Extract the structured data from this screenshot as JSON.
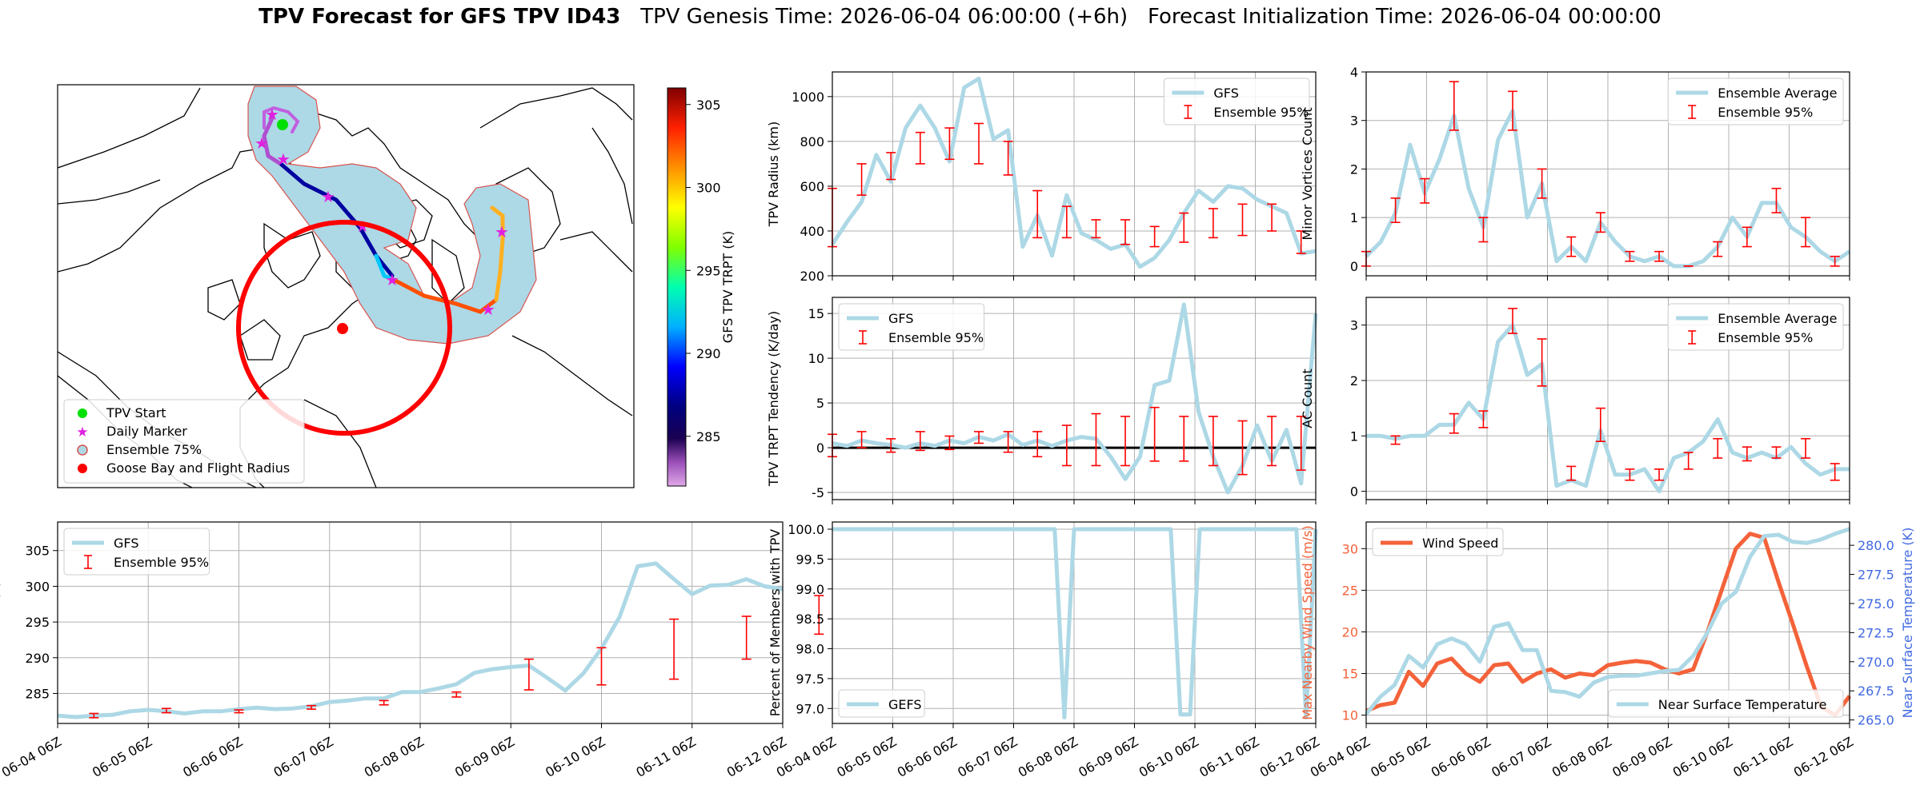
{
  "header": {
    "title_bold": "TPV Forecast for GFS TPV ID43",
    "title_genesis": "TPV Genesis Time: 2026-06-04 06:00:00 (+6h)",
    "title_init": "Forecast Initialization Time: 2026-06-04 00:00:00"
  },
  "colors": {
    "model_line": "#add8e6",
    "errorbar": "#ff0000",
    "wind_line": "#f4623a",
    "temp_axis": "#4169e1",
    "circle": "#ff0000",
    "tpv_start": "#00e000",
    "daily_marker": "#e020e0",
    "ensemble_fill": "#add8e6",
    "ensemble_edge": "#d9534f"
  },
  "x_ticks": [
    "06-04 06Z",
    "06-05 06Z",
    "06-06 06Z",
    "06-07 06Z",
    "06-08 06Z",
    "06-09 06Z",
    "06-10 06Z",
    "06-11 06Z",
    "06-12 06Z"
  ],
  "map": {
    "legend": [
      "TPV Start",
      "Daily Marker",
      "Ensemble 75%",
      "Goose Bay and Flight Radius"
    ],
    "colorbar_label": "GFS TPV TRPT (K)",
    "colorbar_ticks": [
      "285",
      "290",
      "295",
      "300",
      "305"
    ],
    "colorbar_range": [
      282,
      306
    ]
  },
  "chart_data": [
    {
      "type": "line",
      "panel": "radius",
      "ylabel": "TPV Radius (km)",
      "ylim": [
        200,
        1110
      ],
      "yticks": [
        200,
        400,
        600,
        800,
        1000
      ],
      "legend": [
        "GFS",
        "Ensemble 95%"
      ],
      "legend_position": "top-right",
      "grid": true,
      "series": [
        {
          "name": "GFS",
          "values": [
            340,
            440,
            530,
            740,
            620,
            860,
            960,
            860,
            710,
            1040,
            1080,
            810,
            850,
            330,
            470,
            290,
            560,
            390,
            360,
            320,
            340,
            240,
            280,
            360,
            480,
            580,
            530,
            600,
            590,
            540,
            510,
            480,
            300,
            310
          ]
        }
      ],
      "errorbars": [
        {
          "i": 0,
          "lo": 330,
          "hi": 590
        },
        {
          "i": 2,
          "lo": 560,
          "hi": 700
        },
        {
          "i": 4,
          "lo": 630,
          "hi": 750
        },
        {
          "i": 6,
          "lo": 700,
          "hi": 840
        },
        {
          "i": 8,
          "lo": 720,
          "hi": 860
        },
        {
          "i": 10,
          "lo": 700,
          "hi": 880
        },
        {
          "i": 12,
          "lo": 650,
          "hi": 800
        },
        {
          "i": 14,
          "lo": 370,
          "hi": 580
        },
        {
          "i": 16,
          "lo": 370,
          "hi": 510
        },
        {
          "i": 18,
          "lo": 370,
          "hi": 450
        },
        {
          "i": 20,
          "lo": 340,
          "hi": 450
        },
        {
          "i": 22,
          "lo": 330,
          "hi": 420
        },
        {
          "i": 24,
          "lo": 350,
          "hi": 480
        },
        {
          "i": 26,
          "lo": 370,
          "hi": 500
        },
        {
          "i": 28,
          "lo": 380,
          "hi": 520
        },
        {
          "i": 30,
          "lo": 400,
          "hi": 520
        },
        {
          "i": 32,
          "lo": 300,
          "hi": 400
        }
      ]
    },
    {
      "type": "line",
      "panel": "minor_vortices",
      "ylabel": "Minor Vortices Count",
      "ylim": [
        -0.2,
        4
      ],
      "yticks": [
        0,
        1,
        2,
        3,
        4
      ],
      "legend": [
        "Ensemble Average",
        "Ensemble 95%"
      ],
      "legend_position": "top-right",
      "grid": true,
      "series": [
        {
          "name": "Ensemble Average",
          "values": [
            0.2,
            0.5,
            1.1,
            2.5,
            1.5,
            2.2,
            3.1,
            1.6,
            0.8,
            2.6,
            3.2,
            1.0,
            1.7,
            0.1,
            0.4,
            0.1,
            0.9,
            0.5,
            0.2,
            0.1,
            0.2,
            0.0,
            0.0,
            0.1,
            0.4,
            1.0,
            0.6,
            1.3,
            1.3,
            0.8,
            0.6,
            0.3,
            0.1,
            0.3
          ]
        }
      ],
      "errorbars": [
        {
          "i": 0,
          "lo": 0.0,
          "hi": 0.3
        },
        {
          "i": 2,
          "lo": 0.9,
          "hi": 1.4
        },
        {
          "i": 4,
          "lo": 1.3,
          "hi": 1.8
        },
        {
          "i": 6,
          "lo": 2.8,
          "hi": 3.8
        },
        {
          "i": 8,
          "lo": 0.5,
          "hi": 1.0
        },
        {
          "i": 10,
          "lo": 2.8,
          "hi": 3.6
        },
        {
          "i": 12,
          "lo": 1.4,
          "hi": 2.0
        },
        {
          "i": 14,
          "lo": 0.2,
          "hi": 0.6
        },
        {
          "i": 16,
          "lo": 0.7,
          "hi": 1.1
        },
        {
          "i": 18,
          "lo": 0.1,
          "hi": 0.3
        },
        {
          "i": 20,
          "lo": 0.1,
          "hi": 0.3
        },
        {
          "i": 22,
          "lo": 0.0,
          "hi": 0.0
        },
        {
          "i": 24,
          "lo": 0.2,
          "hi": 0.5
        },
        {
          "i": 26,
          "lo": 0.4,
          "hi": 0.8
        },
        {
          "i": 28,
          "lo": 1.1,
          "hi": 1.6
        },
        {
          "i": 30,
          "lo": 0.4,
          "hi": 1.0
        },
        {
          "i": 32,
          "lo": 0.0,
          "hi": 0.2
        }
      ]
    },
    {
      "type": "line",
      "panel": "trpt_tendency",
      "ylabel": "TPV TRPT Tendency (K/day)",
      "ylim": [
        -5.8,
        16.8
      ],
      "yticks": [
        -5,
        0,
        5,
        10,
        15
      ],
      "zero_line": true,
      "legend": [
        "GFS",
        "Ensemble 95%"
      ],
      "legend_position": "top-left",
      "grid": true,
      "series": [
        {
          "name": "GFS",
          "values": [
            0.5,
            0.2,
            0.8,
            0.5,
            0.3,
            0.0,
            0.5,
            0.2,
            0.8,
            0.5,
            1.2,
            0.8,
            1.5,
            0.3,
            0.8,
            0.2,
            0.8,
            1.2,
            1.0,
            -1.0,
            -3.5,
            -1.0,
            7.0,
            7.5,
            16.0,
            4.0,
            -1.0,
            -5.0,
            -2.0,
            2.5,
            -1.5,
            2.0,
            -4.0,
            15.0
          ]
        }
      ],
      "errorbars": [
        {
          "i": 0,
          "lo": -1.0,
          "hi": 1.5
        },
        {
          "i": 2,
          "lo": 0.0,
          "hi": 1.8
        },
        {
          "i": 4,
          "lo": -0.5,
          "hi": 1.0
        },
        {
          "i": 6,
          "lo": -0.3,
          "hi": 1.8
        },
        {
          "i": 8,
          "lo": -0.2,
          "hi": 1.3
        },
        {
          "i": 10,
          "lo": 0.5,
          "hi": 1.8
        },
        {
          "i": 12,
          "lo": -0.5,
          "hi": 1.8
        },
        {
          "i": 14,
          "lo": -1.0,
          "hi": 1.8
        },
        {
          "i": 16,
          "lo": -2.0,
          "hi": 2.5
        },
        {
          "i": 18,
          "lo": -2.0,
          "hi": 3.8
        },
        {
          "i": 20,
          "lo": -2.0,
          "hi": 3.5
        },
        {
          "i": 22,
          "lo": -1.5,
          "hi": 4.5
        },
        {
          "i": 24,
          "lo": -1.5,
          "hi": 3.5
        },
        {
          "i": 26,
          "lo": -2.0,
          "hi": 3.5
        },
        {
          "i": 28,
          "lo": -3.0,
          "hi": 3.0
        },
        {
          "i": 30,
          "lo": -2.0,
          "hi": 3.5
        },
        {
          "i": 32,
          "lo": -2.5,
          "hi": 3.5
        }
      ]
    },
    {
      "type": "line",
      "panel": "ac_count",
      "ylabel": "AC Count",
      "ylim": [
        -0.15,
        3.5
      ],
      "yticks": [
        0,
        1,
        2,
        3
      ],
      "legend": [
        "Ensemble Average",
        "Ensemble 95%"
      ],
      "legend_position": "top-right",
      "grid": true,
      "series": [
        {
          "name": "Ensemble Average",
          "values": [
            1.0,
            1.0,
            0.95,
            1.0,
            1.0,
            1.2,
            1.2,
            1.6,
            1.3,
            2.7,
            3.0,
            2.1,
            2.3,
            0.1,
            0.2,
            0.1,
            1.1,
            0.3,
            0.3,
            0.4,
            0.0,
            0.6,
            0.7,
            0.9,
            1.3,
            0.7,
            0.6,
            0.7,
            0.6,
            0.8,
            0.5,
            0.3,
            0.4,
            0.4
          ]
        }
      ],
      "errorbars": [
        {
          "i": 2,
          "lo": 0.85,
          "hi": 1.0
        },
        {
          "i": 6,
          "lo": 1.05,
          "hi": 1.4
        },
        {
          "i": 8,
          "lo": 1.15,
          "hi": 1.45
        },
        {
          "i": 10,
          "lo": 2.85,
          "hi": 3.3
        },
        {
          "i": 12,
          "lo": 1.9,
          "hi": 2.75
        },
        {
          "i": 14,
          "lo": 0.2,
          "hi": 0.45
        },
        {
          "i": 16,
          "lo": 0.9,
          "hi": 1.5
        },
        {
          "i": 18,
          "lo": 0.2,
          "hi": 0.4
        },
        {
          "i": 20,
          "lo": 0.2,
          "hi": 0.4
        },
        {
          "i": 22,
          "lo": 0.4,
          "hi": 0.7
        },
        {
          "i": 24,
          "lo": 0.6,
          "hi": 0.95
        },
        {
          "i": 26,
          "lo": 0.55,
          "hi": 0.8
        },
        {
          "i": 28,
          "lo": 0.6,
          "hi": 0.8
        },
        {
          "i": 30,
          "lo": 0.6,
          "hi": 0.95
        },
        {
          "i": 32,
          "lo": 0.2,
          "hi": 0.5
        }
      ]
    },
    {
      "type": "line",
      "panel": "trpt",
      "ylabel": "TPV TRPT (K)",
      "ylim": [
        280.8,
        309
      ],
      "yticks": [
        285,
        290,
        295,
        300,
        305
      ],
      "legend": [
        "GFS",
        "Ensemble 95%"
      ],
      "legend_position": "top-left",
      "grid": true,
      "series": [
        {
          "name": "GFS",
          "values": [
            281.9,
            281.7,
            281.9,
            282.0,
            282.5,
            282.7,
            282.5,
            282.2,
            282.5,
            282.5,
            282.8,
            283.0,
            282.8,
            282.9,
            283.2,
            283.8,
            284.0,
            284.3,
            284.3,
            285.2,
            285.2,
            285.7,
            286.3,
            287.9,
            288.4,
            288.7,
            288.9,
            287.2,
            285.4,
            287.8,
            291.3,
            295.7,
            302.8,
            303.2,
            301.0,
            298.9,
            300.1,
            300.2,
            301.0,
            300.0,
            299.6
          ]
        }
      ],
      "errorbars": [
        {
          "i": 2,
          "lo": 281.6,
          "hi": 282.2
        },
        {
          "i": 6,
          "lo": 282.3,
          "hi": 282.9
        },
        {
          "i": 10,
          "lo": 282.3,
          "hi": 282.7
        },
        {
          "i": 14,
          "lo": 282.8,
          "hi": 283.3
        },
        {
          "i": 18,
          "lo": 283.4,
          "hi": 284.0
        },
        {
          "i": 22,
          "lo": 284.5,
          "hi": 285.2
        },
        {
          "i": 26,
          "lo": 285.5,
          "hi": 289.8
        },
        {
          "i": 30,
          "lo": 286.2,
          "hi": 291.4
        },
        {
          "i": 34,
          "lo": 287.0,
          "hi": 295.4
        },
        {
          "i": 38,
          "lo": 289.8,
          "hi": 295.8
        },
        {
          "i": 42,
          "lo": 293.3,
          "hi": 298.7
        },
        {
          "i": 46,
          "lo": 294.0,
          "hi": 299.5
        },
        {
          "i": 50,
          "lo": 297.3,
          "hi": 303.8
        },
        {
          "i": 54,
          "lo": 299.0,
          "hi": 307.8
        },
        {
          "i": 58,
          "lo": 299.9,
          "hi": 304.1
        },
        {
          "i": 62,
          "lo": 300.3,
          "hi": 306.3
        }
      ]
    },
    {
      "type": "line",
      "panel": "percent_members",
      "ylabel": "Percent of Members with TPV",
      "ylim": [
        96.75,
        100.12
      ],
      "yticks": [
        97.0,
        97.5,
        98.0,
        98.5,
        99.0,
        99.5,
        100.0
      ],
      "legend": [
        "GEFS"
      ],
      "legend_position": "bottom-left",
      "grid": true,
      "series": [
        {
          "name": "GEFS",
          "values": [
            100,
            100,
            100,
            100,
            100,
            100,
            100,
            100,
            100,
            100,
            100,
            100,
            100,
            100,
            100,
            100,
            100,
            100,
            100,
            100,
            100,
            100,
            100,
            100,
            96.85,
            100,
            100,
            100,
            100,
            100,
            100,
            100,
            100,
            100,
            100,
            100,
            96.9,
            96.9,
            100,
            100,
            100,
            100,
            100,
            100,
            100,
            100,
            100,
            100,
            100,
            96.85,
            100
          ]
        }
      ]
    },
    {
      "type": "line",
      "panel": "wind_temperature",
      "ylabel": "Max Nearby Wind Speed (m/s)",
      "ylabel_right": "Near Surface Temperature (K)",
      "ylim": [
        9,
        33.2
      ],
      "yticks": [
        10,
        15,
        20,
        25,
        30
      ],
      "ylim_right": [
        264.7,
        282.0
      ],
      "yticks_right": [
        "265.0",
        "267.5",
        "270.0",
        "272.5",
        "275.0",
        "277.5",
        "280.0"
      ],
      "legend": [
        "Wind Speed",
        "Near Surface Temperature"
      ],
      "legend_position": "top-left / bottom-right",
      "grid": true,
      "series": [
        {
          "name": "Wind Speed",
          "axis": "left",
          "values": [
            10.5,
            11.2,
            11.5,
            15.2,
            13.5,
            16.2,
            16.8,
            15.0,
            14.0,
            16.0,
            16.2,
            14.0,
            15.0,
            15.5,
            14.5,
            15.0,
            14.8,
            16.0,
            16.3,
            16.5,
            16.3,
            15.5,
            15.0,
            15.5,
            20.0,
            25.0,
            30.0,
            31.8,
            31.3,
            26.0,
            21.0,
            15.8,
            11.0,
            10.0,
            12.3
          ]
        },
        {
          "name": "Near Surface Temperature",
          "axis": "right",
          "values": [
            265.5,
            267.0,
            268.0,
            270.5,
            269.5,
            271.5,
            272.0,
            271.5,
            270.0,
            273.0,
            273.3,
            271.0,
            271.0,
            267.5,
            267.4,
            267.0,
            268.2,
            268.7,
            268.8,
            268.8,
            269.0,
            269.2,
            269.3,
            270.5,
            272.5,
            275.0,
            276.0,
            279.0,
            280.8,
            280.9,
            280.3,
            280.2,
            280.5,
            281.0,
            281.4
          ]
        }
      ]
    }
  ]
}
